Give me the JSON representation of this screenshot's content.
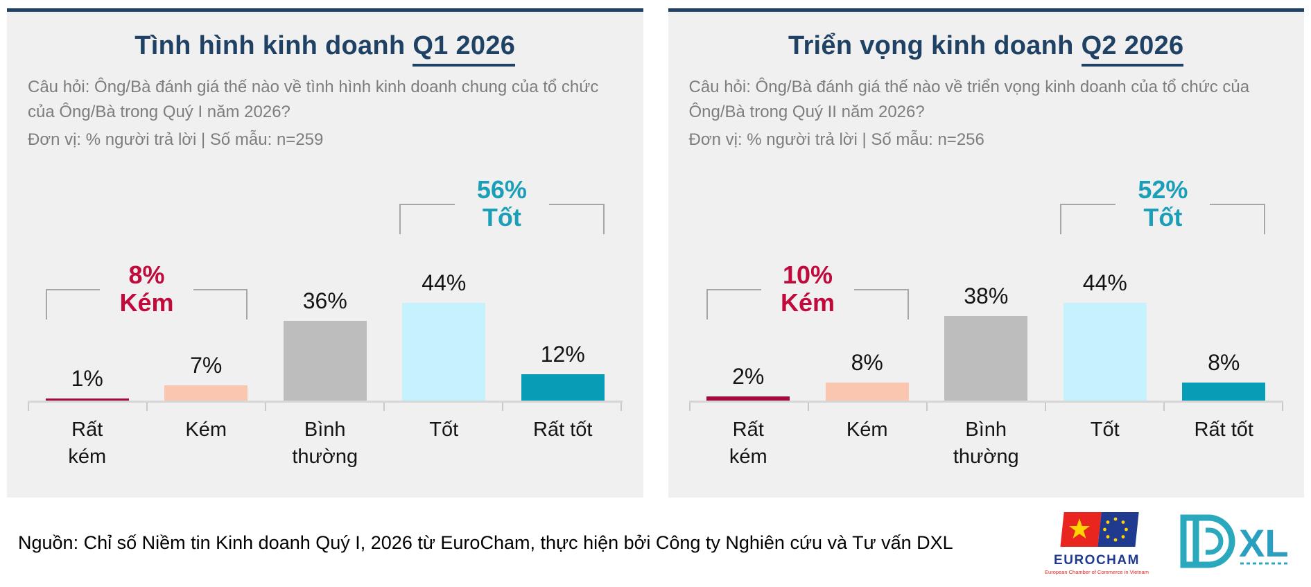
{
  "colors": {
    "accent_navy": "#1e4164",
    "panel_background": "#f0f0f0",
    "subtitle_gray": "#7d7d7d",
    "negative_text": "#c00a3c",
    "positive_text": "#1b9fb8",
    "bracket_gray": "#a6a6a6",
    "axis_gray": "#d6d6d6",
    "bar_palette": [
      "#a6093d",
      "#fbc6b0",
      "#bdbdbd",
      "#c5f2fc",
      "#089db6"
    ]
  },
  "display": {
    "category_lines": [
      "Rất\nkém",
      "Kém",
      "Bình\nthường",
      "Tốt",
      "Rất tốt"
    ],
    "titles": [
      {
        "prefix": "Tình hình kinh doanh ",
        "underlined": "Q1 2026"
      },
      {
        "prefix": "Triển vọng kinh doanh ",
        "underlined": "Q2 2026"
      }
    ]
  },
  "chart_data": [
    {
      "type": "bar",
      "title": "Tình hình kinh doanh Q1 2026",
      "question": "Câu hỏi: Ông/Bà đánh giá thế nào về tình hình kinh doanh chung của tổ chức của Ông/Bà trong Quý I năm 2026?",
      "units_label": "Đơn vị: % người trả lời | Số mẫu: n=259",
      "sample_size": 259,
      "categories": [
        "Rất kém",
        "Kém",
        "Bình thường",
        "Tốt",
        "Rất tốt"
      ],
      "values": [
        1,
        7,
        36,
        44,
        12
      ],
      "unit": "%",
      "ylim": [
        0,
        60
      ],
      "grid": false,
      "annotations": [
        {
          "group": "Kém",
          "value_label": "8%",
          "value": 8,
          "spans": [
            "Rất kém",
            "Kém"
          ],
          "color": "#c00a3c"
        },
        {
          "group": "Tốt",
          "value_label": "56%",
          "value": 56,
          "spans": [
            "Tốt",
            "Rất tốt"
          ],
          "color": "#1b9fb8"
        }
      ]
    },
    {
      "type": "bar",
      "title": "Triển vọng kinh doanh Q2 2026",
      "question": "Câu hỏi: Ông/Bà đánh giá thế nào về triển vọng kinh doanh của tổ chức của Ông/Bà trong Quý II năm 2026?",
      "units_label": "Đơn vị: % người trả lời | Số mẫu: n=256",
      "sample_size": 256,
      "categories": [
        "Rất kém",
        "Kém",
        "Bình thường",
        "Tốt",
        "Rất tốt"
      ],
      "values": [
        2,
        8,
        38,
        44,
        8
      ],
      "unit": "%",
      "ylim": [
        0,
        60
      ],
      "grid": false,
      "annotations": [
        {
          "group": "Kém",
          "value_label": "10%",
          "value": 10,
          "spans": [
            "Rất kém",
            "Kém"
          ],
          "color": "#c00a3c"
        },
        {
          "group": "Tốt",
          "value_label": "52%",
          "value": 52,
          "spans": [
            "Tốt",
            "Rất tốt"
          ],
          "color": "#1b9fb8"
        }
      ]
    }
  ],
  "footer": {
    "source": "Nguồn: Chỉ số Niềm tin Kinh doanh Quý I, 2026 từ EuroCham, thực hiện bởi Công ty Nghiên cứu và Tư vấn DXL",
    "eurocham": {
      "name": "EUROCHAM",
      "tagline": "European Chamber of Commerce in Vietnam"
    },
    "dxl": {
      "name": "XL"
    }
  }
}
